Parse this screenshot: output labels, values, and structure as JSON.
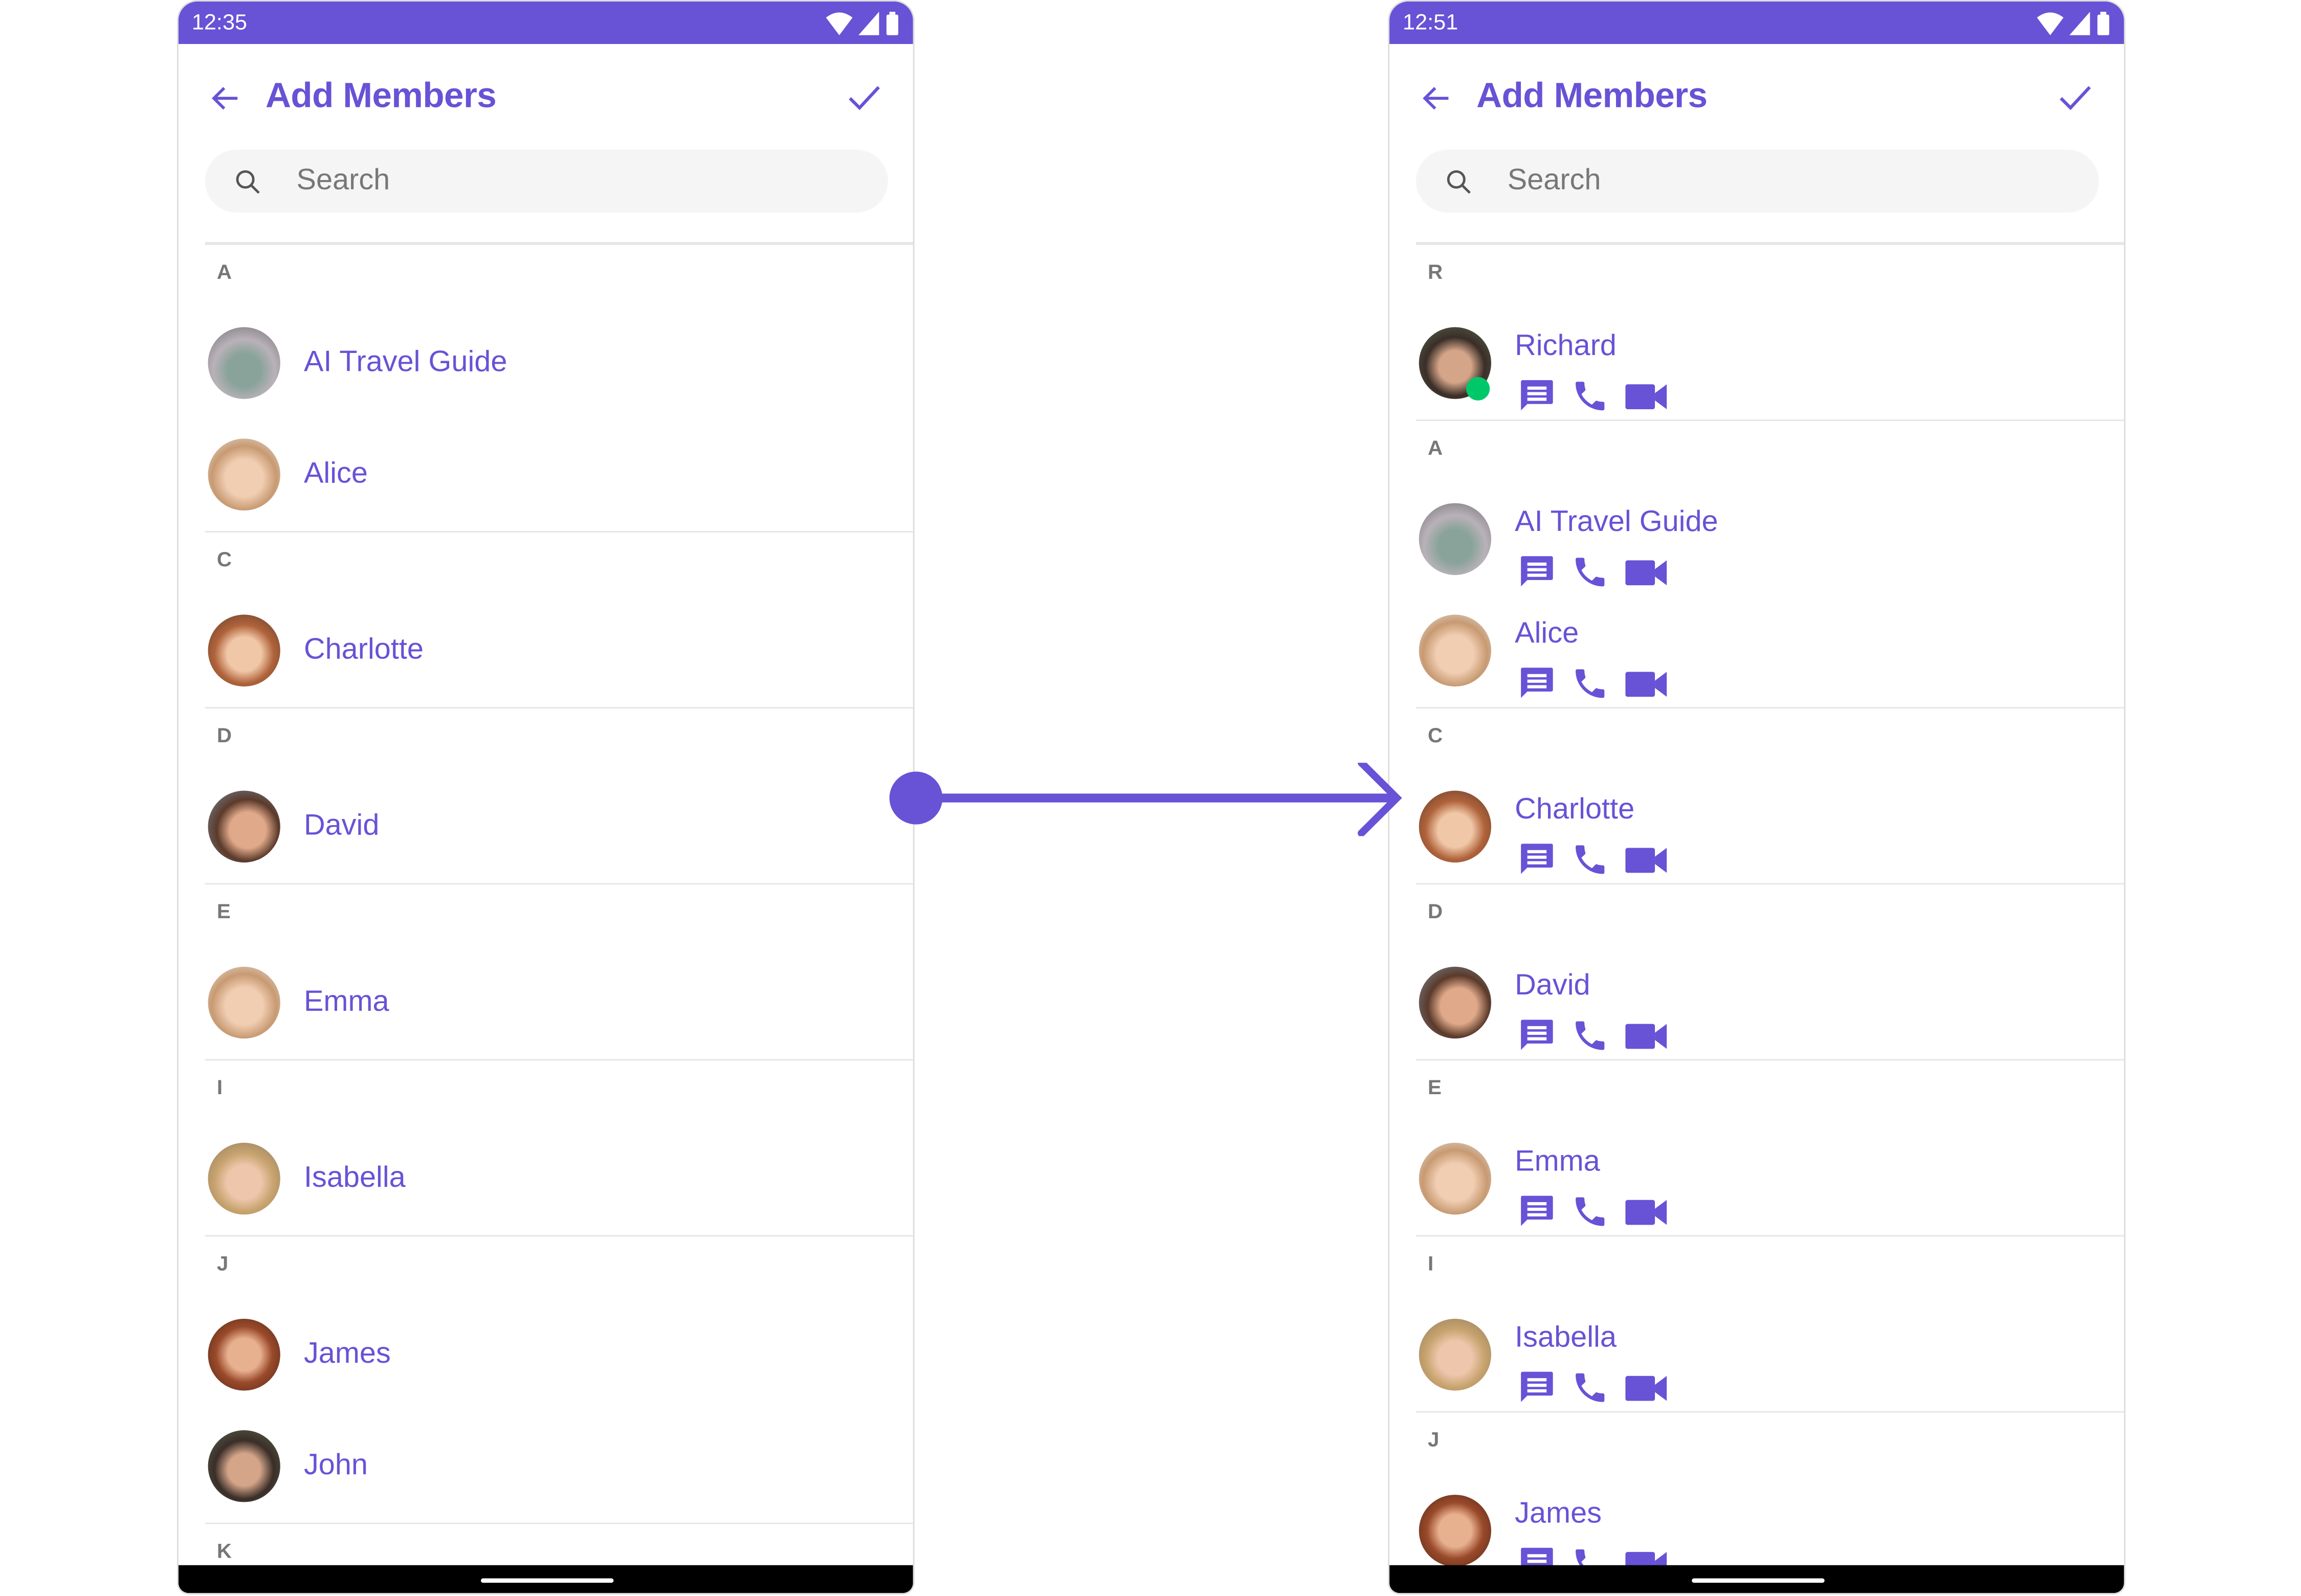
{
  "accent": "#6852D6",
  "online_color": "#00C86A",
  "screens": [
    {
      "time": "12:35",
      "title": "Add Members",
      "search_placeholder": "Search",
      "show_actions": false,
      "sections": [
        {
          "letter": "A",
          "items": [
            {
              "name": "AI Travel Guide",
              "avatar": "statue"
            },
            {
              "name": "Alice",
              "avatar": "face-light"
            }
          ]
        },
        {
          "letter": "C",
          "items": [
            {
              "name": "Charlotte",
              "avatar": "face-redhair"
            }
          ]
        },
        {
          "letter": "D",
          "items": [
            {
              "name": "David",
              "avatar": "face-man"
            }
          ]
        },
        {
          "letter": "E",
          "items": [
            {
              "name": "Emma",
              "avatar": "face-light"
            }
          ]
        },
        {
          "letter": "I",
          "items": [
            {
              "name": "Isabella",
              "avatar": "face-blonde"
            }
          ]
        },
        {
          "letter": "J",
          "items": [
            {
              "name": "James",
              "avatar": "face-red"
            },
            {
              "name": "John",
              "avatar": "face-man-dark"
            }
          ]
        },
        {
          "letter": "K",
          "items": []
        }
      ]
    },
    {
      "time": "12:51",
      "title": "Add Members",
      "search_placeholder": "Search",
      "show_actions": true,
      "sections": [
        {
          "letter": "R",
          "items": [
            {
              "name": "Richard",
              "avatar": "face-man-dark",
              "online": true
            }
          ]
        },
        {
          "letter": "A",
          "items": [
            {
              "name": "AI Travel Guide",
              "avatar": "statue"
            },
            {
              "name": "Alice",
              "avatar": "face-light"
            }
          ]
        },
        {
          "letter": "C",
          "items": [
            {
              "name": "Charlotte",
              "avatar": "face-redhair"
            }
          ]
        },
        {
          "letter": "D",
          "items": [
            {
              "name": "David",
              "avatar": "face-man"
            }
          ]
        },
        {
          "letter": "E",
          "items": [
            {
              "name": "Emma",
              "avatar": "face-light"
            }
          ]
        },
        {
          "letter": "I",
          "items": [
            {
              "name": "Isabella",
              "avatar": "face-blonde"
            }
          ]
        },
        {
          "letter": "J",
          "items": [
            {
              "name": "James",
              "avatar": "face-red"
            }
          ]
        }
      ]
    }
  ],
  "action_icons": [
    "chat-icon",
    "phone-icon",
    "video-call-icon"
  ],
  "transition_arrow": "arrow-right-icon"
}
